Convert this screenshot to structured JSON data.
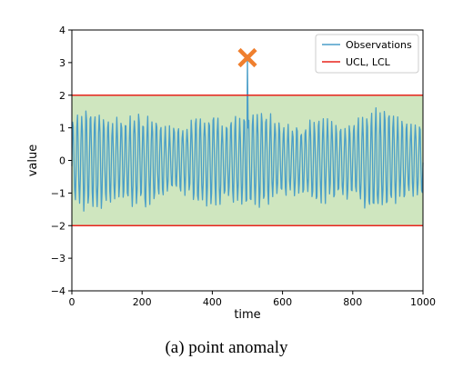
{
  "caption": "(a) point anomaly",
  "colors": {
    "observations": "#4a9ec8",
    "limits": "#e8241c",
    "band": "#cfe6bf",
    "anomaly_marker": "#ef7f2e"
  },
  "chart_data": {
    "type": "line",
    "xlabel": "time",
    "ylabel": "value",
    "xlim": [
      0,
      1000
    ],
    "ylim": [
      -4,
      4
    ],
    "xticks": [
      0,
      200,
      400,
      600,
      800,
      1000
    ],
    "yticks": [
      -4,
      -3,
      -2,
      -1,
      0,
      1,
      2,
      3,
      4
    ],
    "grid": false,
    "legend_position": "top-right",
    "legend": [
      "Observations",
      "UCL, LCL"
    ],
    "ucl": 2,
    "lcl": -2,
    "series": [
      {
        "name": "Observations",
        "period": 12.5,
        "amplitude_range": [
          0.9,
          1.5
        ],
        "x_range": [
          0,
          1000
        ],
        "note_shape": "periodic oscillation roughly between -1.5 and 1.5"
      }
    ],
    "anomalies": [
      {
        "x": 500,
        "y": 3.15,
        "marker": "x"
      }
    ]
  }
}
